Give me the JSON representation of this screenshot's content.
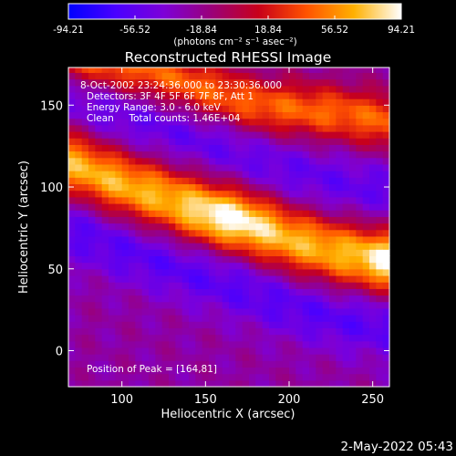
{
  "chart_data": {
    "type": "heatmap",
    "title": "Reconstructed RHESSI Image",
    "xlabel": "Heliocentric X (arcsec)",
    "ylabel": "Heliocentric Y (arcsec)",
    "xlim": [
      68,
      260
    ],
    "ylim": [
      -22,
      173
    ],
    "x_ticks": [
      100,
      150,
      200,
      250
    ],
    "y_ticks": [
      0,
      50,
      100,
      150
    ],
    "colorbar": {
      "range": [
        -94.21,
        94.21
      ],
      "tick_labels": [
        "-94.21",
        "-56.52",
        "-18.84",
        "18.84",
        "56.52",
        "94.21"
      ],
      "unit_label": "(photons cm⁻² s⁻¹ asec⁻²)",
      "colors": [
        "#0000ff",
        "#4a00ff",
        "#7d00d8",
        "#9a007a",
        "#c8001a",
        "#ff5200",
        "#ffb000",
        "#ffffff"
      ]
    },
    "annotations": [
      "8-Oct-2002 23:24:36.000 to 23:30:36.000",
      "Detectors: 3F 4F 5F 6F 7F 8F, Att 1",
      "Energy Range: 3.0 - 6.0 keV",
      "Clean     Total counts: 1.46E+04"
    ],
    "peak_label": "Position of Peak = [164,81]",
    "peak_position": [
      164,
      81
    ],
    "ridge": [
      [
        68,
        115
      ],
      [
        100,
        102
      ],
      [
        130,
        92
      ],
      [
        164,
        81
      ],
      [
        200,
        68
      ],
      [
        230,
        60
      ],
      [
        260,
        55
      ]
    ],
    "secondary_ridge": [
      [
        68,
        180
      ],
      [
        120,
        170
      ],
      [
        180,
        150
      ],
      [
        230,
        145
      ],
      [
        260,
        140
      ]
    ]
  },
  "timestamp": "2-May-2022 05:43"
}
